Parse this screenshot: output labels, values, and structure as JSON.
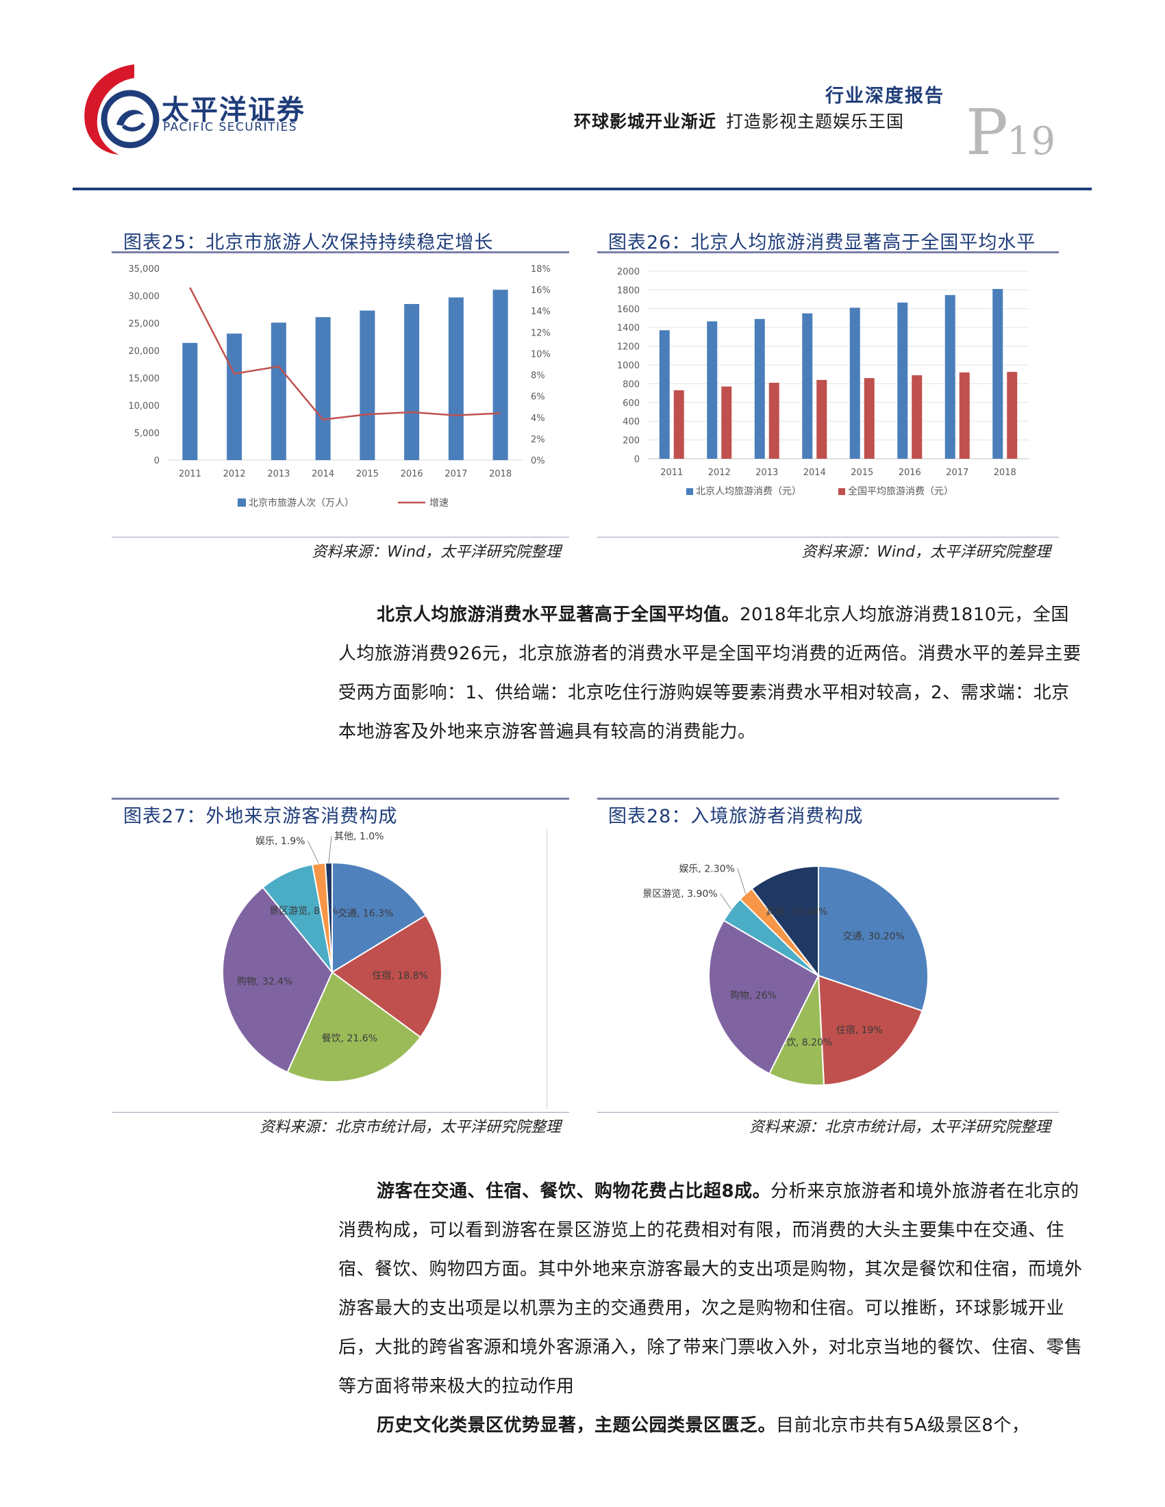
{
  "header": {
    "brand_cn": "太平洋证券",
    "brand_en": "PACIFIC SECURITIES",
    "report_type": "行业深度报告",
    "report_title_part1": "环球影城开业渐近",
    "report_title_part2": "打造影视主题娱乐王国",
    "page_letter": "P",
    "page_number": "19",
    "colors": {
      "brand_blue": "#1f3d7a",
      "brand_red": "#d7182a"
    }
  },
  "figures": {
    "fig25": {
      "title": "图表25：北京市旅游人次保持持续稳定增长",
      "source": "资料来源：Wind，太平洋研究院整理"
    },
    "fig26": {
      "title": "图表26：北京人均旅游消费显著高于全国平均水平",
      "source": "资料来源：Wind，太平洋研究院整理"
    },
    "fig27": {
      "title": "图表27：外地来京游客消费构成",
      "source": "资料来源：北京市统计局，太平洋研究院整理"
    },
    "fig28": {
      "title": "图表28：入境旅游者消费构成",
      "source": "资料来源：北京市统计局，太平洋研究院整理"
    }
  },
  "chart_data": [
    {
      "id": "fig25",
      "type": "bar",
      "categories": [
        "2011",
        "2012",
        "2013",
        "2014",
        "2015",
        "2016",
        "2017",
        "2018"
      ],
      "series": [
        {
          "name": "北京市旅游人次（万人）",
          "kind": "bar",
          "axis": "left",
          "color": "#4a7ebb",
          "values": [
            21400,
            23100,
            25100,
            26100,
            27300,
            28500,
            29700,
            31100
          ]
        },
        {
          "name": "增速",
          "kind": "line",
          "axis": "right",
          "color": "#c0504d",
          "values": [
            16.2,
            8.1,
            8.8,
            3.8,
            4.3,
            4.5,
            4.2,
            4.4
          ]
        }
      ],
      "ylim_left": [
        0,
        35000
      ],
      "yticks_left": [
        "0",
        "5,000",
        "10,000",
        "15,000",
        "20,000",
        "25,000",
        "30,000",
        "35,000"
      ],
      "ylim_right": [
        0,
        18
      ],
      "yticks_right": [
        "0%",
        "2%",
        "4%",
        "6%",
        "8%",
        "10%",
        "12%",
        "14%",
        "16%",
        "18%"
      ],
      "grid": false,
      "legend": "bottom"
    },
    {
      "id": "fig26",
      "type": "bar",
      "categories": [
        "2011",
        "2012",
        "2013",
        "2014",
        "2015",
        "2016",
        "2017",
        "2018"
      ],
      "series": [
        {
          "name": "北京人均旅游消费（元）",
          "color": "#4a7ebb",
          "values": [
            1370,
            1465,
            1490,
            1550,
            1610,
            1665,
            1745,
            1810
          ]
        },
        {
          "name": "全国平均旅游消费（元）",
          "color": "#c0504d",
          "values": [
            730,
            770,
            810,
            840,
            860,
            890,
            920,
            926
          ]
        }
      ],
      "ylim": [
        0,
        2000
      ],
      "yticks": [
        "0",
        "200",
        "400",
        "600",
        "800",
        "1000",
        "1200",
        "1400",
        "1600",
        "1800",
        "2000"
      ],
      "grid": true,
      "legend": "bottom"
    },
    {
      "id": "fig27",
      "type": "pie",
      "slices": [
        {
          "label": "交通, 16.3%",
          "value": 16.3,
          "color": "#4f81bd",
          "label_pos": "inside"
        },
        {
          "label": "住宿, 18.8%",
          "value": 18.8,
          "color": "#c0504d",
          "label_pos": "inside"
        },
        {
          "label": "餐饮, 21.6%",
          "value": 21.6,
          "color": "#9bbb59",
          "label_pos": "inside"
        },
        {
          "label": "购物, 32.4%",
          "value": 32.4,
          "color": "#8064a2",
          "label_pos": "inside"
        },
        {
          "label": "景区游览, 8.0%",
          "value": 8.0,
          "color": "#4bacc6",
          "label_pos": "inside"
        },
        {
          "label": "娱乐, 1.9%",
          "value": 1.9,
          "color": "#f79646",
          "label_pos": "outside"
        },
        {
          "label": "其他, 1.0%",
          "value": 1.0,
          "color": "#1f3864",
          "label_pos": "outside"
        }
      ]
    },
    {
      "id": "fig28",
      "type": "pie",
      "slices": [
        {
          "label": "交通, 30.20%",
          "value": 30.2,
          "color": "#4f81bd",
          "label_pos": "inside"
        },
        {
          "label": "住宿, 19%",
          "value": 19.0,
          "color": "#c0504d",
          "label_pos": "inside"
        },
        {
          "label": "餐饮, 8.20%",
          "value": 8.2,
          "color": "#9bbb59",
          "label_pos": "inside"
        },
        {
          "label": "购物, 26%",
          "value": 26.0,
          "color": "#8064a2",
          "label_pos": "inside"
        },
        {
          "label": "景区游览, 3.90%",
          "value": 3.9,
          "color": "#4bacc6",
          "label_pos": "outside"
        },
        {
          "label": "娱乐, 2.30%",
          "value": 2.3,
          "color": "#f79646",
          "label_pos": "outside"
        },
        {
          "label": "其他, 10.40%",
          "value": 10.4,
          "color": "#1f3864",
          "label_pos": "inside"
        }
      ]
    }
  ],
  "body": {
    "para1_lead": "北京人均旅游消费水平显著高于全国平均值。",
    "para1_text": "2018年北京人均旅游消费1810元，全国人均旅游消费926元，北京旅游者的消费水平是全国平均消费的近两倍。消费水平的差异主要受两方面影响：1、供给端：北京吃住行游购娱等要素消费水平相对较高，2、需求端：北京本地游客及外地来京游客普遍具有较高的消费能力。",
    "para2_lead": "游客在交通、住宿、餐饮、购物花费占比超8成。",
    "para2_text": "分析来京旅游者和境外旅游者在北京的消费构成，可以看到游客在景区游览上的花费相对有限，而消费的大头主要集中在交通、住宿、餐饮、购物四方面。其中外地来京游客最大的支出项是购物，其次是餐饮和住宿，而境外游客最大的支出项是以机票为主的交通费用，次之是购物和住宿。可以推断，环球影城开业后，大批的跨省客源和境外客源涌入，除了带来门票收入外，对北京当地的餐饮、住宿、零售等方面将带来极大的拉动作用",
    "para3_lead": "历史文化类景区优势显著，主题公园类景区匮乏。",
    "para3_text": "目前北京市共有5A级景区8个，"
  }
}
